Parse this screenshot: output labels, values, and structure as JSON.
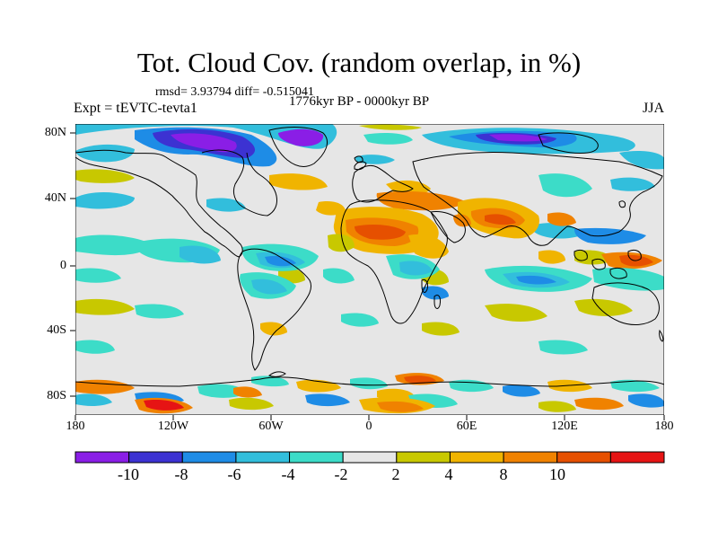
{
  "title": "Tot. Cloud Cov. (random overlap, in %)",
  "stats": "rmsd= 3.93794  diff= -0.515041",
  "expt": "Expt = tEVTC-tevta1",
  "period": "1776kyr BP - 0000kyr BP",
  "season": "JJA",
  "axes": {
    "y_labels": [
      "80N",
      "40N",
      "0",
      "40S",
      "80S"
    ],
    "x_labels": [
      "180",
      "120W",
      "60W",
      "0",
      "60E",
      "120E",
      "180"
    ]
  },
  "colorbar": {
    "labels": [
      "-10",
      "-8",
      "-6",
      "-4",
      "-2",
      "2",
      "4",
      "8",
      "10"
    ],
    "colors": [
      "#8a1ee6",
      "#3c32d2",
      "#1e8ce6",
      "#32bedc",
      "#3cdcc8",
      "#e6e6e6",
      "#c8c800",
      "#f0b400",
      "#f08200",
      "#e65000",
      "#e61414"
    ]
  },
  "palette": {
    "background": "#e6e6e6",
    "coast": "#000000"
  }
}
